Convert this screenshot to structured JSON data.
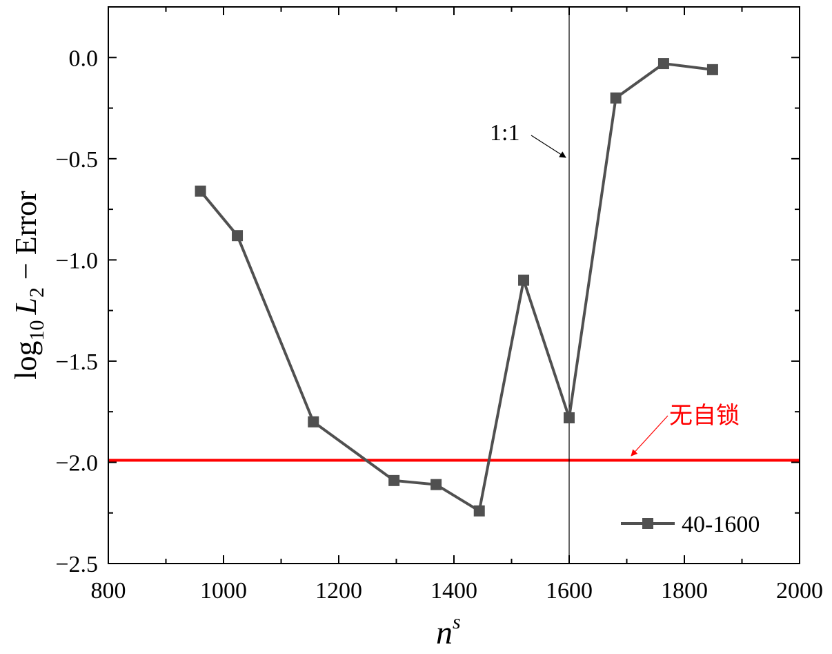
{
  "chart_data": {
    "type": "line",
    "xlabel": "n",
    "xlabel_superscript": "s",
    "ylabel_parts": {
      "log": "log",
      "log_sub": "10",
      "var": "L",
      "var_sub": "2",
      "rest": " − Error"
    },
    "xlim": [
      800,
      2000
    ],
    "ylim": [
      -2.5,
      0.25
    ],
    "xticks": [
      800,
      1000,
      1200,
      1400,
      1600,
      1800,
      2000
    ],
    "xtick_labels": [
      "800",
      "1000",
      "1200",
      "1400",
      "1600",
      "1800",
      "2000"
    ],
    "yticks": [
      -2.5,
      -2.0,
      -1.5,
      -1.0,
      -0.5,
      0.0
    ],
    "ytick_labels": [
      "−2.5",
      "−2.0",
      "−1.5",
      "−1.0",
      "−0.5",
      "0.0"
    ],
    "grid": false,
    "legend_position": "bottom-right",
    "series": [
      {
        "name": "40-1600",
        "color": "#505050",
        "marker": "square",
        "x": [
          960,
          1024,
          1156,
          1296,
          1369,
          1444,
          1521,
          1600,
          1681,
          1764,
          1849
        ],
        "y": [
          -0.66,
          -0.88,
          -1.8,
          -2.09,
          -2.11,
          -2.24,
          -1.1,
          -1.78,
          -0.2,
          -0.03,
          -0.06
        ]
      }
    ],
    "reference_lines": [
      {
        "kind": "horizontal",
        "value": -1.99,
        "color": "#ff0000",
        "label": "无自锁"
      },
      {
        "kind": "vertical",
        "value": 1600,
        "color": "#000000",
        "label": "1:1"
      }
    ]
  }
}
